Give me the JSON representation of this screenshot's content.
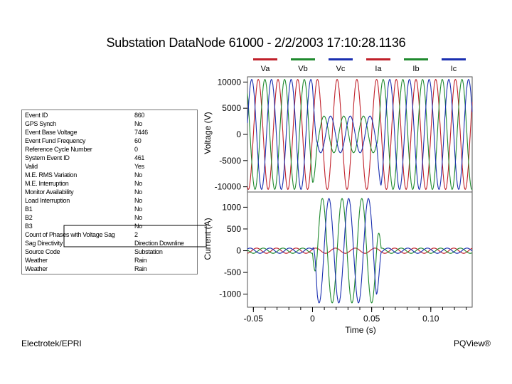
{
  "title": "Substation DataNode 61000 - 2/2/2003 17:10:28.1136",
  "legend": [
    {
      "label": "Va",
      "color": "#c0202a"
    },
    {
      "label": "Vb",
      "color": "#1f8a2e"
    },
    {
      "label": "Vc",
      "color": "#1a2fb0"
    },
    {
      "label": "Ia",
      "color": "#c0202a"
    },
    {
      "label": "Ib",
      "color": "#1f8a2e"
    },
    {
      "label": "Ic",
      "color": "#1a2fb0"
    }
  ],
  "info_table": [
    {
      "key": "Event ID",
      "value": "860"
    },
    {
      "key": "GPS Synch",
      "value": "No"
    },
    {
      "key": "Event Base Voltage",
      "value": "7446"
    },
    {
      "key": "Event Fund Frequency",
      "value": "60"
    },
    {
      "key": "Reference Cycle Number",
      "value": "0"
    },
    {
      "key": "System Event ID",
      "value": "461"
    },
    {
      "key": "Valid",
      "value": "Yes"
    },
    {
      "key": "M.E. RMS Variation",
      "value": "No"
    },
    {
      "key": "M.E. Interruption",
      "value": "No"
    },
    {
      "key": "Monitor Availability",
      "value": "No"
    },
    {
      "key": "Load Interruption",
      "value": "No"
    },
    {
      "key": "B1",
      "value": "No"
    },
    {
      "key": "B2",
      "value": "No"
    },
    {
      "key": "B3",
      "value": "No"
    },
    {
      "key": "Count of Phases with Voltage Sag",
      "value": "2"
    },
    {
      "key": "Sag Directivity",
      "value": "Direction Downline"
    },
    {
      "key": "Source Code",
      "value": "Substation"
    },
    {
      "key": "Weather",
      "value": "Rain"
    },
    {
      "key": "Weather",
      "value": "Rain"
    }
  ],
  "footer": {
    "left": "Electrotek/EPRI",
    "right": "PQView®"
  },
  "chart_data": {
    "type": "line",
    "xlabel": "Time (s)",
    "xlim": [
      -0.055,
      0.135
    ],
    "xticks": [
      -0.05,
      0,
      0.05,
      0.1
    ],
    "xtick_labels": [
      "-0.05",
      "0",
      "0.05",
      "0.10"
    ],
    "frequency_hz": 60,
    "event_window_s": [
      0,
      0.058
    ],
    "panels": [
      {
        "name": "voltage",
        "ylabel": "Voltage (V)",
        "ylim": [
          -11000,
          11000
        ],
        "yticks": [
          10000,
          5000,
          0,
          -5000,
          -10000
        ],
        "ytick_labels": [
          "10000",
          "5000",
          "0",
          "-5000",
          "-10000"
        ],
        "series": [
          {
            "name": "Va",
            "color": "#c0202a",
            "amplitude": 10500,
            "phase_deg": 0,
            "event_amplitude": 10500
          },
          {
            "name": "Vb",
            "color": "#1f8a2e",
            "amplitude": 10500,
            "phase_deg": -120,
            "event_amplitude": 3500
          },
          {
            "name": "Vc",
            "color": "#1a2fb0",
            "amplitude": 10500,
            "phase_deg": 120,
            "event_amplitude": 3500
          }
        ]
      },
      {
        "name": "current",
        "ylabel": "Current (A)",
        "ylim": [
          -1300,
          1350
        ],
        "yticks": [
          1000,
          500,
          0,
          -500,
          -1000
        ],
        "ytick_labels": [
          "1000",
          "500",
          "0",
          "-500",
          "-1000"
        ],
        "series": [
          {
            "name": "Ia",
            "color": "#c0202a",
            "amplitude": 60,
            "phase_deg": 30,
            "event_amplitude": 60
          },
          {
            "name": "Ib",
            "color": "#1f8a2e",
            "amplitude": 60,
            "phase_deg": -90,
            "event_amplitude": 1200
          },
          {
            "name": "Ic",
            "color": "#1a2fb0",
            "amplitude": 60,
            "phase_deg": 150,
            "event_amplitude": 1200
          }
        ]
      }
    ]
  }
}
